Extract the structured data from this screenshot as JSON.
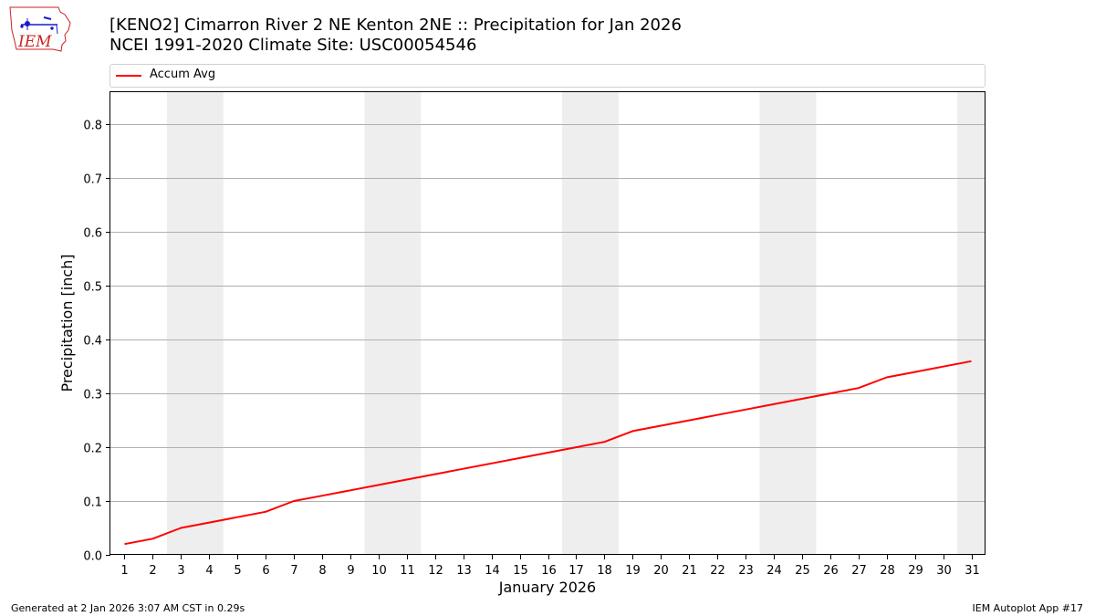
{
  "header": {
    "title_line1": "[KENO2] Cimarron River 2 NE Kenton 2NE :: Precipitation for Jan 2026",
    "title_line2": "NCEI 1991-2020 Climate Site: USC00054546",
    "logo_text": "IEM"
  },
  "footer": {
    "left": "Generated at 2 Jan 2026 3:07 AM CST in 0.29s",
    "right": "IEM Autoplot App #17"
  },
  "colors": {
    "series": "#ff0000",
    "weekend_band": "#eeeeee",
    "grid": "#b0b0b0",
    "logo_text": "#cc2222",
    "logo_icon": "#1a1acc"
  },
  "chart_data": {
    "type": "line",
    "xlabel": "January 2026",
    "ylabel": "Precipitation [inch]",
    "xlim": [
      0.5,
      31.5
    ],
    "ylim": [
      0,
      0.86
    ],
    "x": [
      1,
      2,
      3,
      4,
      5,
      6,
      7,
      8,
      9,
      10,
      11,
      12,
      13,
      14,
      15,
      16,
      17,
      18,
      19,
      20,
      21,
      22,
      23,
      24,
      25,
      26,
      27,
      28,
      29,
      30,
      31
    ],
    "x_tick_labels": [
      "1",
      "2",
      "3",
      "4",
      "5",
      "6",
      "7",
      "8",
      "9",
      "10",
      "11",
      "12",
      "13",
      "14",
      "15",
      "16",
      "17",
      "18",
      "19",
      "20",
      "21",
      "22",
      "23",
      "24",
      "25",
      "26",
      "27",
      "28",
      "29",
      "30",
      "31"
    ],
    "y_ticks": [
      0.0,
      0.1,
      0.2,
      0.3,
      0.4,
      0.5,
      0.6,
      0.7,
      0.8
    ],
    "y_tick_labels": [
      "0.0",
      "0.1",
      "0.2",
      "0.3",
      "0.4",
      "0.5",
      "0.6",
      "0.7",
      "0.8"
    ],
    "grid": "horizontal",
    "legend_position": "top",
    "weekend_days": [
      3,
      4,
      10,
      11,
      17,
      18,
      24,
      25,
      31
    ],
    "series": [
      {
        "name": "Accum Avg",
        "values": [
          0.02,
          0.03,
          0.05,
          0.06,
          0.07,
          0.08,
          0.1,
          0.11,
          0.12,
          0.13,
          0.14,
          0.15,
          0.16,
          0.17,
          0.18,
          0.19,
          0.2,
          0.21,
          0.23,
          0.24,
          0.25,
          0.26,
          0.27,
          0.28,
          0.29,
          0.3,
          0.31,
          0.33,
          0.34,
          0.35,
          0.36
        ]
      }
    ]
  }
}
